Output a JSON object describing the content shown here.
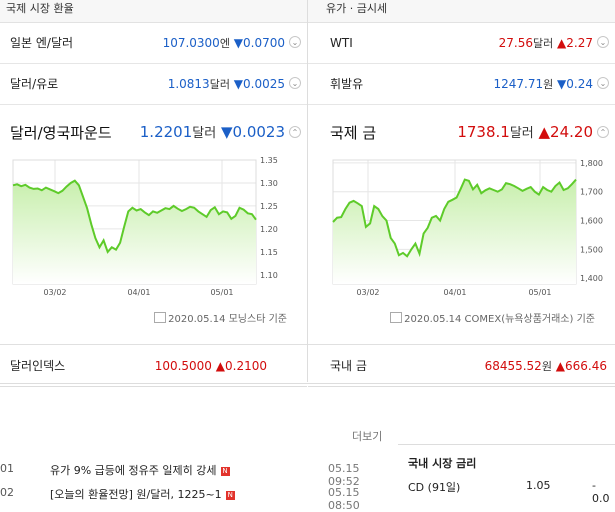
{
  "left": {
    "section_title": "국제 시장 환율",
    "rows": [
      {
        "name": "일본 엔/달러",
        "value": "107.0300",
        "unit": "엔",
        "change": "▼0.0700",
        "dir": "down"
      },
      {
        "name": "달러/유로",
        "value": "1.0813",
        "unit": "달러",
        "change": "▼0.0025",
        "dir": "down"
      }
    ],
    "featured": {
      "name": "달러/영국파운드",
      "value": "1.2201",
      "unit": "달러",
      "change": "▼0.0023",
      "dir": "down"
    },
    "source": "2020.05.14 모닝스타 기준",
    "bottom": {
      "name": "달러인덱스",
      "value": "100.5000",
      "change": "▲0.2100",
      "dir": "up"
    }
  },
  "right": {
    "section_title": "유가 · 금시세",
    "rows": [
      {
        "name": "WTI",
        "value": "27.56",
        "unit": "달러",
        "change": "▲2.27",
        "dir": "up"
      },
      {
        "name": "휘발유",
        "value": "1247.71",
        "unit": "원",
        "change": "▼0.24",
        "dir": "down"
      }
    ],
    "featured": {
      "name": "국제 금",
      "value": "1738.1",
      "unit": "달러",
      "change": "▲24.20",
      "dir": "up"
    },
    "source": "2020.05.14 COMEX(뉴욕상품거래소) 기준",
    "bottom": {
      "name": "국내 금",
      "value": "68455.52",
      "unit": "원",
      "change": "▲666.46",
      "dir": "up"
    }
  },
  "chart_data": [
    {
      "type": "area",
      "x_ticks": [
        "03/02",
        "04/01",
        "05/01"
      ],
      "y_ticks": [
        "1.35",
        "1.30",
        "1.25",
        "1.20",
        "1.15",
        "1.10"
      ],
      "ylim": [
        1.08,
        1.35
      ],
      "values": [
        1.295,
        1.297,
        1.293,
        1.296,
        1.29,
        1.287,
        1.288,
        1.284,
        1.29,
        1.286,
        1.282,
        1.278,
        1.283,
        1.292,
        1.3,
        1.305,
        1.295,
        1.27,
        1.245,
        1.21,
        1.18,
        1.16,
        1.175,
        1.15,
        1.16,
        1.155,
        1.17,
        1.205,
        1.238,
        1.246,
        1.24,
        1.243,
        1.236,
        1.23,
        1.238,
        1.235,
        1.24,
        1.245,
        1.243,
        1.25,
        1.244,
        1.239,
        1.243,
        1.248,
        1.246,
        1.238,
        1.232,
        1.226,
        1.241,
        1.247,
        1.232,
        1.238,
        1.236,
        1.222,
        1.228,
        1.246,
        1.242,
        1.234,
        1.232,
        1.22
      ],
      "grid": true
    },
    {
      "type": "area",
      "x_ticks": [
        "03/02",
        "04/01",
        "05/01"
      ],
      "y_ticks": [
        "1,800",
        "1,700",
        "1,600",
        "1,500",
        "1,400"
      ],
      "ylim": [
        1380,
        1810
      ],
      "values": [
        1595,
        1610,
        1612,
        1640,
        1662,
        1668,
        1660,
        1650,
        1578,
        1590,
        1650,
        1640,
        1615,
        1600,
        1540,
        1520,
        1480,
        1488,
        1476,
        1500,
        1520,
        1485,
        1555,
        1575,
        1610,
        1616,
        1600,
        1640,
        1665,
        1672,
        1680,
        1710,
        1742,
        1738,
        1708,
        1724,
        1695,
        1705,
        1712,
        1706,
        1700,
        1708,
        1730,
        1726,
        1720,
        1712,
        1703,
        1710,
        1716,
        1700,
        1690,
        1716,
        1706,
        1700,
        1720,
        1732,
        1706,
        1712,
        1726,
        1742
      ],
      "grid": true
    }
  ],
  "news": {
    "more_label": "더보기",
    "items": [
      {
        "no": "01",
        "title": "유가 9% 급등에 정유주 일제히 강세",
        "new": "N",
        "time": "05.15 09:52"
      },
      {
        "no": "02",
        "title": "[오늘의 환율전망] 원/달러, 1225~1",
        "new": "N",
        "time": "05.15 08:50"
      }
    ]
  },
  "rates": {
    "title": "국내 시장 금리",
    "rows": [
      {
        "name": "CD (91일)",
        "value": "1.05",
        "change": "- 0.0"
      }
    ]
  },
  "colors": {
    "down": "#1b5fc7",
    "up": "#d20d0d",
    "line": "#5ecb2a",
    "fill_top": "#c8efad"
  }
}
